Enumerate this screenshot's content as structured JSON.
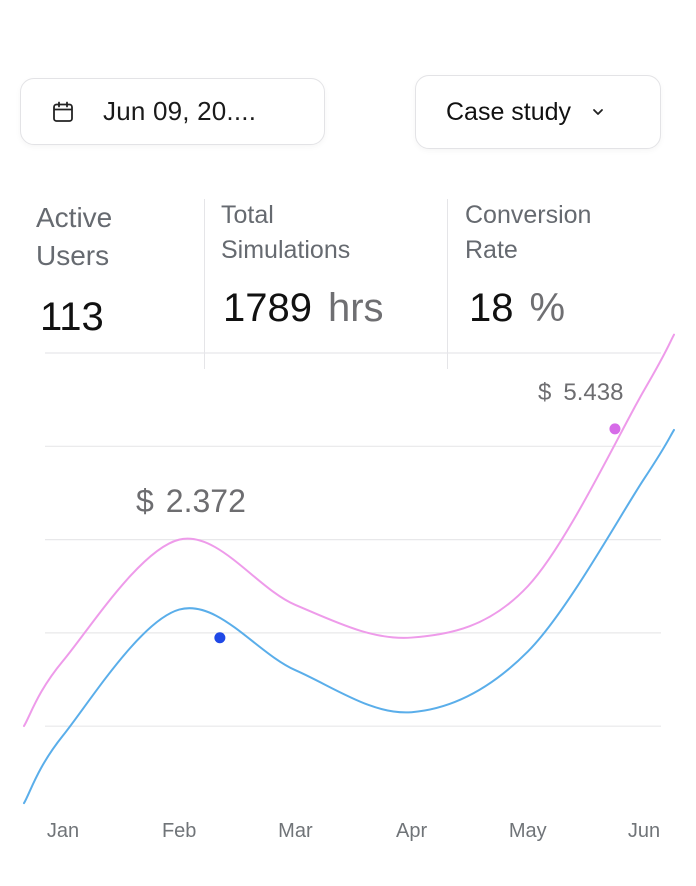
{
  "date_picker": {
    "value": "Jun 09, 20...."
  },
  "category_select": {
    "value": "Case study"
  },
  "stats": [
    {
      "label_line1": "Active",
      "label_line2": "Users",
      "value": "113",
      "unit": ""
    },
    {
      "label_line1": "Total",
      "label_line2": "Simulations",
      "value": "1789",
      "unit": "hrs"
    },
    {
      "label_line1": "Conversion",
      "label_line2": "Rate",
      "value": "18",
      "unit": "%"
    }
  ],
  "chart_data": {
    "type": "line",
    "categories": [
      "Jan",
      "Feb",
      "Mar",
      "Apr",
      "May",
      "Jun"
    ],
    "grid": true,
    "legend": "none",
    "series": [
      {
        "color": "#ee9bea",
        "values": [
          3.7,
          5.0,
          4.3,
          3.95,
          4.5,
          6.6
        ]
      },
      {
        "color": "#5aaeea",
        "values": [
          2.9,
          4.25,
          3.6,
          3.15,
          3.8,
          5.65
        ]
      }
    ],
    "annotations": [
      {
        "text": "$ 2.372",
        "series": 1,
        "x": 1.35,
        "marker_color": "#1f48e6"
      },
      {
        "text": "$ 5.438",
        "series": 0,
        "x": 4.75,
        "marker_color": "#d66be8"
      }
    ],
    "ylim": [
      0,
      7
    ]
  }
}
